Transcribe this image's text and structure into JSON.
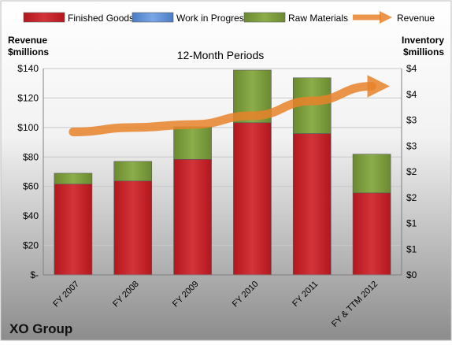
{
  "chart_data": {
    "type": "bar",
    "title": "12-Month Periods",
    "company": "XO Group",
    "ylabel_left": [
      "Revenue",
      "$millions"
    ],
    "ylabel_right": [
      "Inventory",
      "$millions"
    ],
    "categories": [
      "FY 2007",
      "FY 2008",
      "FY 2009",
      "FY 2010",
      "FY 2011",
      "FY & TTM 2012"
    ],
    "left_ticks": [
      "$-",
      "$20",
      "$40",
      "$60",
      "$80",
      "$100",
      "$120",
      "$140"
    ],
    "right_ticks": [
      "$0",
      "$1",
      "$1",
      "$2",
      "$2",
      "$3",
      "$3",
      "$4",
      "$4"
    ],
    "ylim_left": [
      0,
      140
    ],
    "ylim_right": [
      0,
      4
    ],
    "series": [
      {
        "name": "Finished Goods",
        "color": "#c0262b",
        "values": [
          1.76,
          1.82,
          2.24,
          2.95,
          2.74,
          1.59
        ]
      },
      {
        "name": "Work in Progress",
        "color": "#5b8ed6",
        "values": [
          0,
          0,
          0,
          0,
          0,
          0
        ]
      },
      {
        "name": "Raw Materials",
        "color": "#7a9a3a",
        "values": [
          0.21,
          0.38,
          0.63,
          1.02,
          1.08,
          0.75
        ]
      }
    ],
    "revenue": {
      "name": "Revenue",
      "color": "#e8832a",
      "values": [
        97,
        100,
        102,
        108,
        118,
        128
      ]
    },
    "legend_position": "top",
    "stacked": true,
    "grid": true
  }
}
